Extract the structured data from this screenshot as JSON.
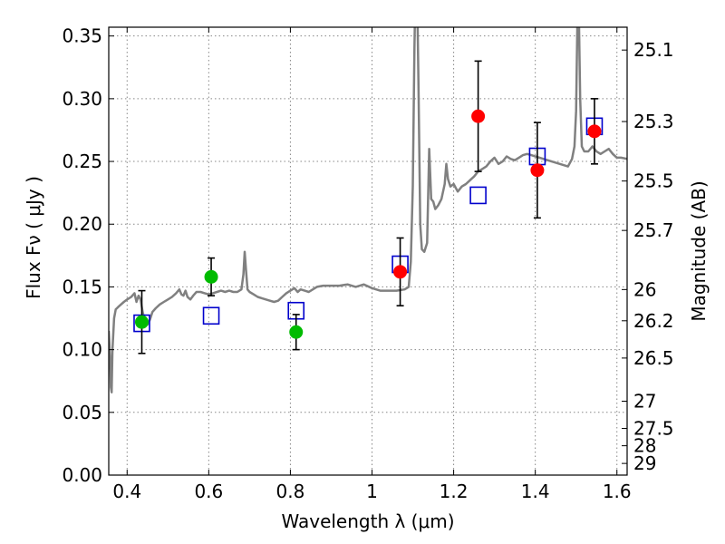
{
  "chart_data": {
    "type": "scatter",
    "xlabel": "Wavelength  λ (μm)",
    "ylabel": "Flux  Fν  ( μJy )",
    "y2label": "Magnitude (AB)",
    "xlim": [
      0.355,
      1.625
    ],
    "ylim": [
      0.0,
      0.357
    ],
    "grid": true,
    "x_ticks": [
      0.4,
      0.6,
      0.8,
      1.0,
      1.2,
      1.4,
      1.6
    ],
    "x_tick_labels": [
      "0.4",
      "0.6",
      "0.8",
      "1",
      "1.2",
      "1.4",
      "1.6"
    ],
    "y_ticks": [
      0.0,
      0.05,
      0.1,
      0.15,
      0.2,
      0.25,
      0.3,
      0.35
    ],
    "y_tick_labels": [
      "0.00",
      "0.05",
      "0.10",
      "0.15",
      "0.20",
      "0.25",
      "0.30",
      "0.35"
    ],
    "y2_ticks": [
      {
        "label": "25.1",
        "flux": 0.3388
      },
      {
        "label": "25.3",
        "flux": 0.2818
      },
      {
        "label": "25.5",
        "flux": 0.2344
      },
      {
        "label": "25.7",
        "flux": 0.195
      },
      {
        "label": "26",
        "flux": 0.1479
      },
      {
        "label": "26.2",
        "flux": 0.123
      },
      {
        "label": "26.5",
        "flux": 0.0933
      },
      {
        "label": "27",
        "flux": 0.0589
      },
      {
        "label": "27.5",
        "flux": 0.0372
      },
      {
        "label": "28",
        "flux": 0.0234
      },
      {
        "label": "29",
        "flux": 0.0093
      }
    ],
    "colors": {
      "model": "#808080",
      "green": "#00bb00",
      "red": "#ff0000",
      "box": "#0000cc",
      "grid": "#888888"
    },
    "series": [
      {
        "kind": "line",
        "points": [
          [
            0.355,
            0.115
          ],
          [
            0.358,
            0.095
          ],
          [
            0.36,
            0.07
          ],
          [
            0.362,
            0.066
          ],
          [
            0.364,
            0.1
          ],
          [
            0.368,
            0.125
          ],
          [
            0.372,
            0.132
          ],
          [
            0.378,
            0.134
          ],
          [
            0.385,
            0.136
          ],
          [
            0.392,
            0.138
          ],
          [
            0.4,
            0.14
          ],
          [
            0.41,
            0.142
          ],
          [
            0.418,
            0.145
          ],
          [
            0.423,
            0.138
          ],
          [
            0.428,
            0.143
          ],
          [
            0.433,
            0.14
          ],
          [
            0.438,
            0.13
          ],
          [
            0.444,
            0.122
          ],
          [
            0.45,
            0.12
          ],
          [
            0.456,
            0.124
          ],
          [
            0.462,
            0.13
          ],
          [
            0.47,
            0.133
          ],
          [
            0.48,
            0.136
          ],
          [
            0.49,
            0.138
          ],
          [
            0.5,
            0.14
          ],
          [
            0.51,
            0.142
          ],
          [
            0.52,
            0.145
          ],
          [
            0.528,
            0.148
          ],
          [
            0.533,
            0.144
          ],
          [
            0.538,
            0.143
          ],
          [
            0.543,
            0.147
          ],
          [
            0.548,
            0.142
          ],
          [
            0.555,
            0.14
          ],
          [
            0.562,
            0.143
          ],
          [
            0.57,
            0.146
          ],
          [
            0.58,
            0.146
          ],
          [
            0.59,
            0.145
          ],
          [
            0.6,
            0.144
          ],
          [
            0.61,
            0.145
          ],
          [
            0.62,
            0.146
          ],
          [
            0.63,
            0.147
          ],
          [
            0.64,
            0.146
          ],
          [
            0.65,
            0.147
          ],
          [
            0.66,
            0.146
          ],
          [
            0.67,
            0.146
          ],
          [
            0.68,
            0.148
          ],
          [
            0.685,
            0.16
          ],
          [
            0.688,
            0.178
          ],
          [
            0.691,
            0.165
          ],
          [
            0.695,
            0.148
          ],
          [
            0.7,
            0.146
          ],
          [
            0.71,
            0.144
          ],
          [
            0.72,
            0.142
          ],
          [
            0.73,
            0.141
          ],
          [
            0.74,
            0.14
          ],
          [
            0.75,
            0.139
          ],
          [
            0.76,
            0.138
          ],
          [
            0.77,
            0.139
          ],
          [
            0.78,
            0.142
          ],
          [
            0.79,
            0.145
          ],
          [
            0.8,
            0.147
          ],
          [
            0.81,
            0.149
          ],
          [
            0.818,
            0.146
          ],
          [
            0.825,
            0.148
          ],
          [
            0.835,
            0.147
          ],
          [
            0.845,
            0.146
          ],
          [
            0.855,
            0.148
          ],
          [
            0.865,
            0.15
          ],
          [
            0.88,
            0.151
          ],
          [
            0.9,
            0.151
          ],
          [
            0.92,
            0.151
          ],
          [
            0.94,
            0.152
          ],
          [
            0.96,
            0.15
          ],
          [
            0.98,
            0.152
          ],
          [
            1.0,
            0.149
          ],
          [
            1.02,
            0.147
          ],
          [
            1.04,
            0.147
          ],
          [
            1.06,
            0.147
          ],
          [
            1.08,
            0.148
          ],
          [
            1.09,
            0.15
          ],
          [
            1.095,
            0.17
          ],
          [
            1.1,
            0.23
          ],
          [
            1.104,
            0.34
          ],
          [
            1.107,
            0.4
          ],
          [
            1.11,
            0.4
          ],
          [
            1.114,
            0.31
          ],
          [
            1.118,
            0.2
          ],
          [
            1.122,
            0.18
          ],
          [
            1.128,
            0.178
          ],
          [
            1.135,
            0.185
          ],
          [
            1.14,
            0.26
          ],
          [
            1.145,
            0.22
          ],
          [
            1.15,
            0.218
          ],
          [
            1.155,
            0.212
          ],
          [
            1.162,
            0.215
          ],
          [
            1.17,
            0.22
          ],
          [
            1.178,
            0.232
          ],
          [
            1.182,
            0.248
          ],
          [
            1.186,
            0.236
          ],
          [
            1.192,
            0.23
          ],
          [
            1.2,
            0.232
          ],
          [
            1.21,
            0.226
          ],
          [
            1.22,
            0.23
          ],
          [
            1.23,
            0.232
          ],
          [
            1.24,
            0.235
          ],
          [
            1.25,
            0.238
          ],
          [
            1.26,
            0.242
          ],
          [
            1.27,
            0.244
          ],
          [
            1.28,
            0.246
          ],
          [
            1.29,
            0.25
          ],
          [
            1.3,
            0.253
          ],
          [
            1.31,
            0.248
          ],
          [
            1.32,
            0.25
          ],
          [
            1.33,
            0.254
          ],
          [
            1.34,
            0.252
          ],
          [
            1.35,
            0.251
          ],
          [
            1.36,
            0.253
          ],
          [
            1.37,
            0.255
          ],
          [
            1.38,
            0.256
          ],
          [
            1.39,
            0.255
          ],
          [
            1.4,
            0.254
          ],
          [
            1.42,
            0.252
          ],
          [
            1.44,
            0.25
          ],
          [
            1.46,
            0.248
          ],
          [
            1.48,
            0.246
          ],
          [
            1.49,
            0.252
          ],
          [
            1.496,
            0.262
          ],
          [
            1.5,
            0.29
          ],
          [
            1.503,
            0.36
          ],
          [
            1.507,
            0.36
          ],
          [
            1.51,
            0.3
          ],
          [
            1.514,
            0.262
          ],
          [
            1.52,
            0.258
          ],
          [
            1.53,
            0.258
          ],
          [
            1.54,
            0.262
          ],
          [
            1.55,
            0.258
          ],
          [
            1.56,
            0.256
          ],
          [
            1.57,
            0.258
          ],
          [
            1.58,
            0.26
          ],
          [
            1.59,
            0.256
          ],
          [
            1.6,
            0.253
          ],
          [
            1.61,
            0.253
          ],
          [
            1.625,
            0.252
          ]
        ]
      },
      {
        "kind": "boxes",
        "points": [
          [
            0.436,
            0.121
          ],
          [
            0.606,
            0.127
          ],
          [
            0.814,
            0.131
          ],
          [
            1.069,
            0.168
          ],
          [
            1.26,
            0.223
          ],
          [
            1.405,
            0.254
          ],
          [
            1.545,
            0.278
          ]
        ]
      },
      {
        "kind": "points",
        "color": "green",
        "points": [
          {
            "x": 0.436,
            "y": 0.122,
            "err": 0.025
          },
          {
            "x": 0.606,
            "y": 0.158,
            "err": 0.015
          },
          {
            "x": 0.814,
            "y": 0.114,
            "err": 0.014
          }
        ]
      },
      {
        "kind": "points",
        "color": "red",
        "points": [
          {
            "x": 1.069,
            "y": 0.162,
            "err": 0.027
          },
          {
            "x": 1.26,
            "y": 0.286,
            "err": 0.044
          },
          {
            "x": 1.405,
            "y": 0.243,
            "err": 0.038
          },
          {
            "x": 1.545,
            "y": 0.274,
            "err": 0.026
          }
        ]
      }
    ]
  }
}
